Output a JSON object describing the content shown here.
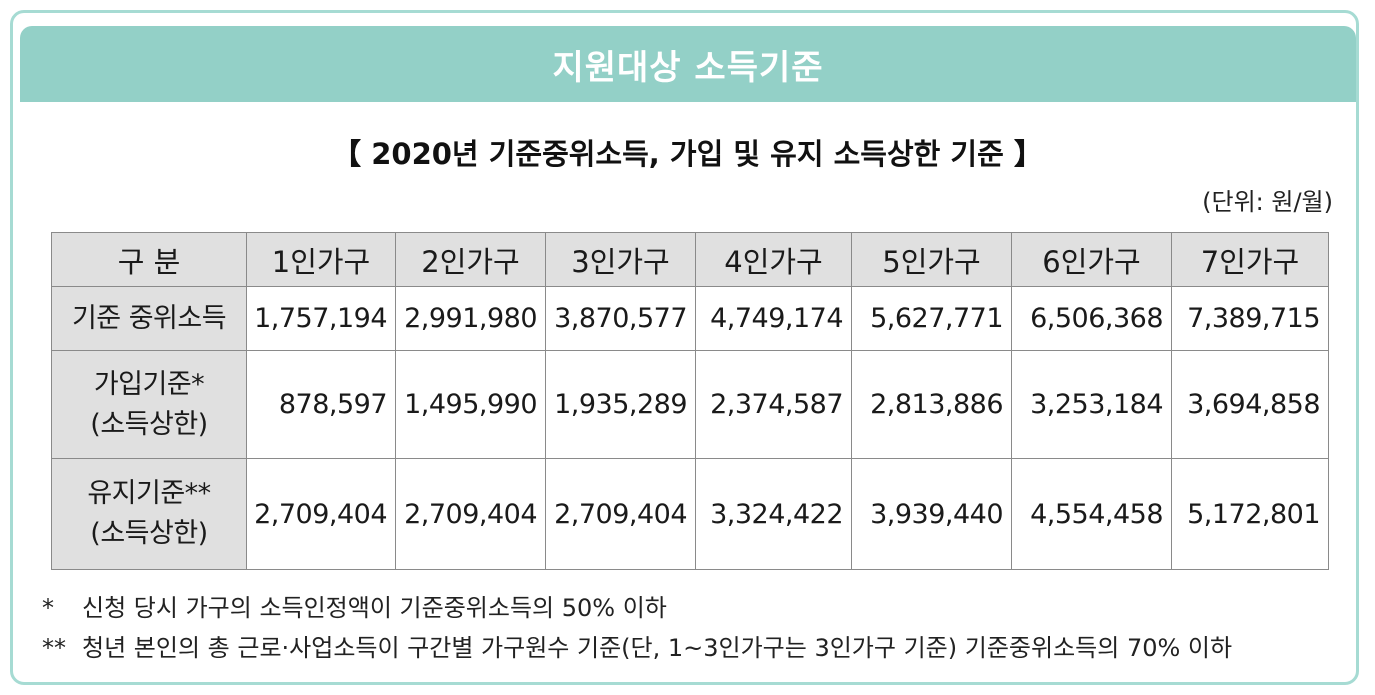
{
  "banner": {
    "title": "지원대상 소득기준"
  },
  "subtitle": "【 2020년 기준중위소득, 가입 및 유지 소득상한 기준 】",
  "unit": "(단위: 원/월)",
  "table": {
    "headers": [
      "구 분",
      "1인가구",
      "2인가구",
      "3인가구",
      "4인가구",
      "5인가구",
      "6인가구",
      "7인가구"
    ],
    "rows": [
      {
        "label": [
          "기준 중위소득"
        ],
        "values": [
          "1,757,194",
          "2,991,980",
          "3,870,577",
          "4,749,174",
          "5,627,771",
          "6,506,368",
          "7,389,715"
        ]
      },
      {
        "label": [
          "가입기준*",
          "(소득상한)"
        ],
        "values": [
          "878,597",
          "1,495,990",
          "1,935,289",
          "2,374,587",
          "2,813,886",
          "3,253,184",
          "3,694,858"
        ]
      },
      {
        "label": [
          "유지기준**",
          "(소득상한)"
        ],
        "values": [
          "2,709,404",
          "2,709,404",
          "2,709,404",
          "3,324,422",
          "3,939,440",
          "4,554,458",
          "5,172,801"
        ]
      }
    ]
  },
  "notes": [
    {
      "mark": "*",
      "text": "신청 당시 가구의 소득인정액이 기준중위소득의 50% 이하"
    },
    {
      "mark": "**",
      "text": "청년 본인의 총 근로·사업소득이 구간별 가구원수 기준(단, 1~3인가구는 3인가구 기준) 기준중위소득의 70% 이하"
    }
  ],
  "colors": {
    "banner": "#93d0c7",
    "border": "#a6dbd3",
    "header_cell": "#e0e0e0"
  }
}
